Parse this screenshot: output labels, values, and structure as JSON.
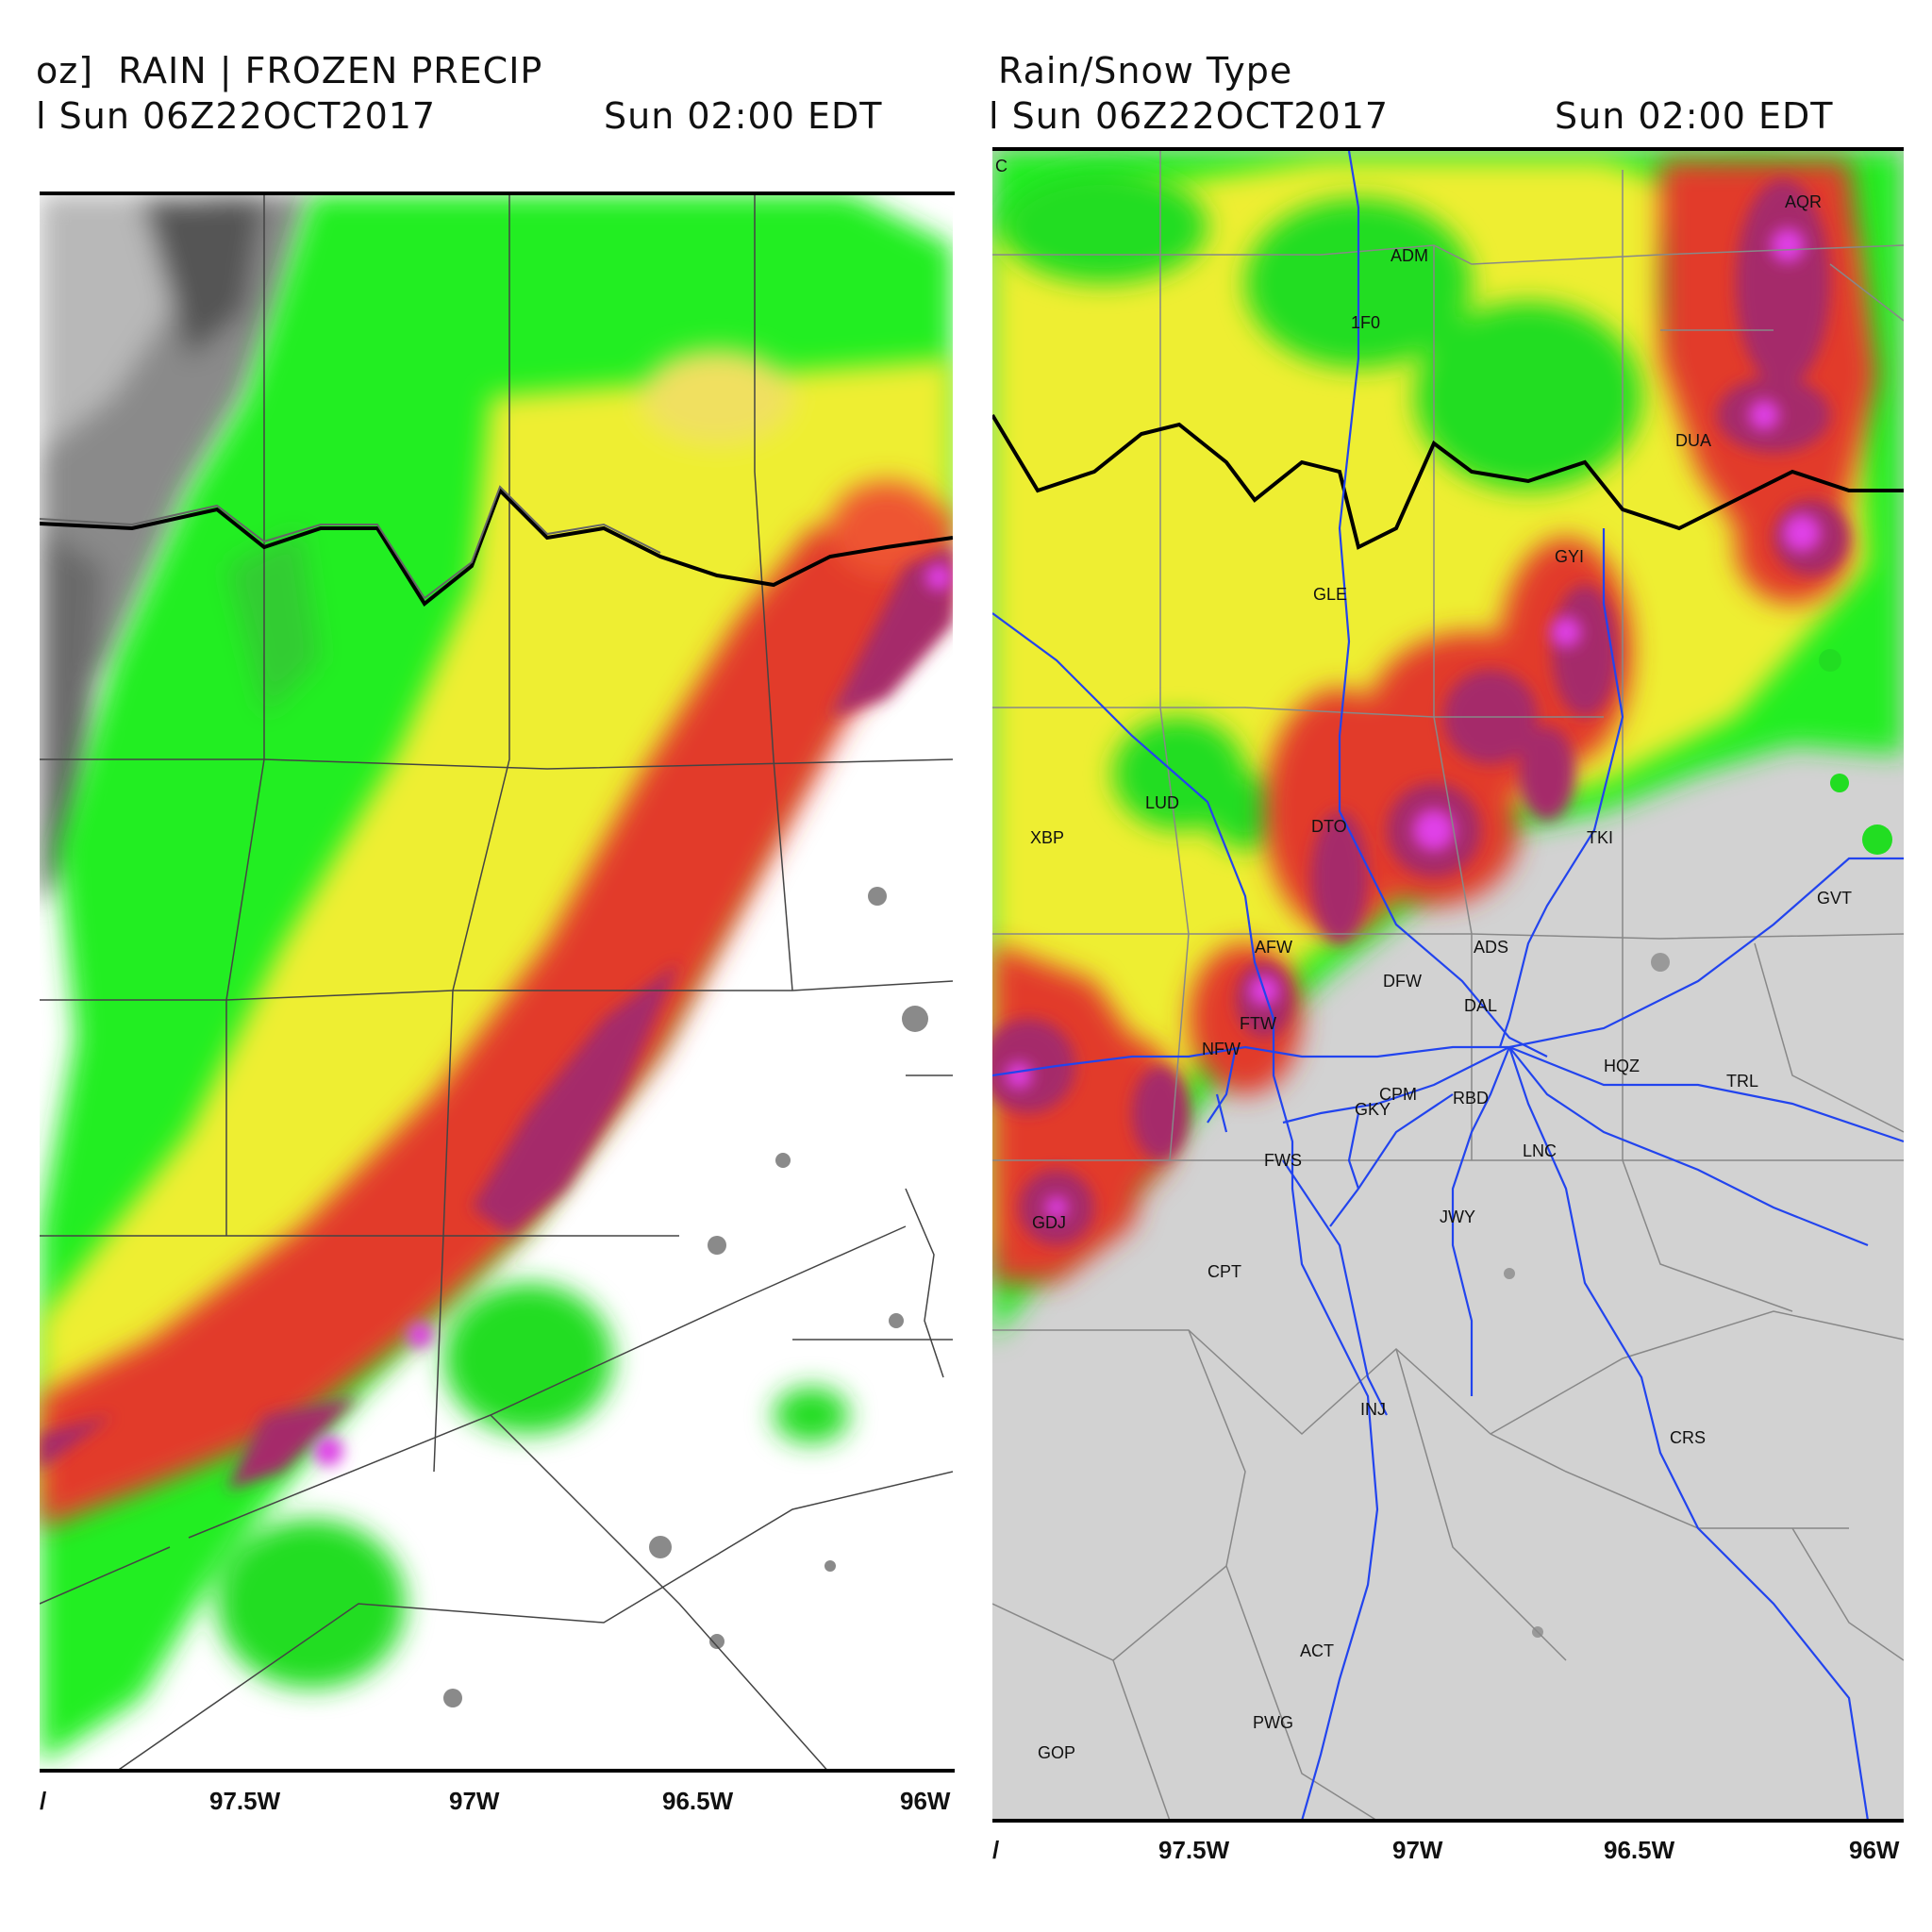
{
  "left_panel": {
    "title_line1": "oz]  RAIN | FROZEN PRECIP",
    "title_line2_left": "l Sun 06Z22OCT2017",
    "title_line2_right": "Sun 02:00 EDT",
    "x_ticks": [
      "/",
      "97.5W",
      "97W",
      "96.5W",
      "96W"
    ]
  },
  "right_panel": {
    "title_line1": "Rain/Snow Type",
    "title_line2_left": "l Sun 06Z22OCT2017",
    "title_line2_right": "Sun 02:00 EDT",
    "x_ticks": [
      "/",
      "97.5W",
      "97W",
      "96.5W",
      "96W"
    ],
    "stations": [
      "C",
      "AQR",
      "ADM",
      "1F0",
      "DUA",
      "GYI",
      "GLE",
      "LUD",
      "XBP",
      "DTO",
      "TKI",
      "GVT",
      "ADS",
      "AFW",
      "DFW",
      "DAL",
      "FTW",
      "NFW",
      "HQZ",
      "TRL",
      "CPM",
      "RBD",
      "GKY",
      "FWS",
      "LNC",
      "JWY",
      "GDJ",
      "CPT",
      "INJ",
      "CRS",
      "ACT",
      "PWG",
      "GOP"
    ]
  },
  "colors": {
    "rain_light": "#22ee22",
    "rain_moderate": "#eeee30",
    "rain_heavy": "#e23a2a",
    "rain_intense": "#a52a6a",
    "rain_extreme": "#e040e8",
    "frozen_gray": "#7a7a7a",
    "no_precip_right": "#d2d2d2",
    "highway": "#2244ee"
  }
}
